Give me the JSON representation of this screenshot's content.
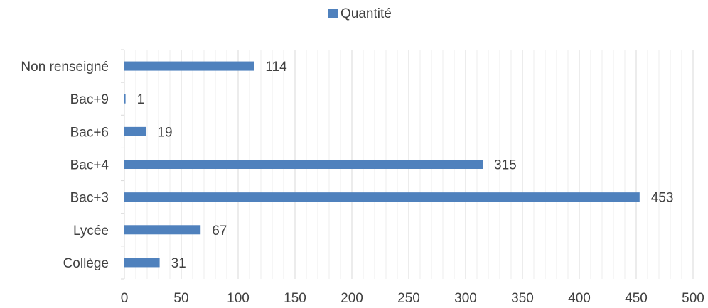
{
  "chart_data": {
    "type": "bar",
    "orientation": "horizontal",
    "categories": [
      "Collège",
      "Lycée",
      "Bac+3",
      "Bac+4",
      "Bac+6",
      "Bac+9",
      "Non renseigné"
    ],
    "series": [
      {
        "name": "Quantité",
        "values": [
          31,
          67,
          453,
          315,
          19,
          1,
          114
        ],
        "color": "#4f81bd"
      }
    ],
    "xlim": [
      0,
      500
    ],
    "x_ticks": [
      0,
      50,
      100,
      150,
      200,
      250,
      300,
      350,
      400,
      450,
      500
    ],
    "grid": true,
    "minor_grid": true,
    "legend_position": "top",
    "data_labels": true,
    "gridline_color": "#d9d9d9",
    "text_color": "#404040"
  }
}
